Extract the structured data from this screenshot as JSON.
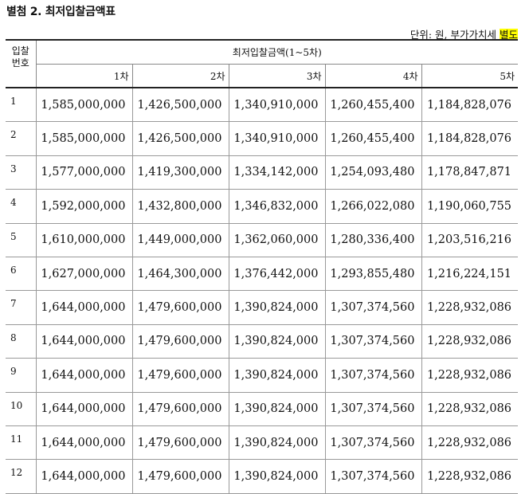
{
  "doc": {
    "title": "별첨 2. 최저입찰금액표",
    "unit_prefix": "단위: 원, 부가가치세",
    "unit_highlight": "별도"
  },
  "table": {
    "bid_no_label_line1": "입찰",
    "bid_no_label_line2": "번호",
    "group_header": "최저입찰금액(1~5차)",
    "columns": [
      "1차",
      "2차",
      "3차",
      "4차",
      "5차"
    ],
    "rows": [
      {
        "no": "1",
        "values": [
          "1,585,000,000",
          "1,426,500,000",
          "1,340,910,000",
          "1,260,455,400",
          "1,184,828,076"
        ]
      },
      {
        "no": "2",
        "values": [
          "1,585,000,000",
          "1,426,500,000",
          "1,340,910,000",
          "1,260,455,400",
          "1,184,828,076"
        ]
      },
      {
        "no": "3",
        "values": [
          "1,577,000,000",
          "1,419,300,000",
          "1,334,142,000",
          "1,254,093,480",
          "1,178,847,871"
        ]
      },
      {
        "no": "4",
        "values": [
          "1,592,000,000",
          "1,432,800,000",
          "1,346,832,000",
          "1,266,022,080",
          "1,190,060,755"
        ]
      },
      {
        "no": "5",
        "values": [
          "1,610,000,000",
          "1,449,000,000",
          "1,362,060,000",
          "1,280,336,400",
          "1,203,516,216"
        ]
      },
      {
        "no": "6",
        "values": [
          "1,627,000,000",
          "1,464,300,000",
          "1,376,442,000",
          "1,293,855,480",
          "1,216,224,151"
        ]
      },
      {
        "no": "7",
        "values": [
          "1,644,000,000",
          "1,479,600,000",
          "1,390,824,000",
          "1,307,374,560",
          "1,228,932,086"
        ]
      },
      {
        "no": "8",
        "values": [
          "1,644,000,000",
          "1,479,600,000",
          "1,390,824,000",
          "1,307,374,560",
          "1,228,932,086"
        ]
      },
      {
        "no": "9",
        "values": [
          "1,644,000,000",
          "1,479,600,000",
          "1,390,824,000",
          "1,307,374,560",
          "1,228,932,086"
        ]
      },
      {
        "no": "10",
        "values": [
          "1,644,000,000",
          "1,479,600,000",
          "1,390,824,000",
          "1,307,374,560",
          "1,228,932,086"
        ]
      },
      {
        "no": "11",
        "values": [
          "1,644,000,000",
          "1,479,600,000",
          "1,390,824,000",
          "1,307,374,560",
          "1,228,932,086"
        ]
      },
      {
        "no": "12",
        "values": [
          "1,644,000,000",
          "1,479,600,000",
          "1,390,824,000",
          "1,307,374,560",
          "1,228,932,086"
        ]
      }
    ]
  }
}
